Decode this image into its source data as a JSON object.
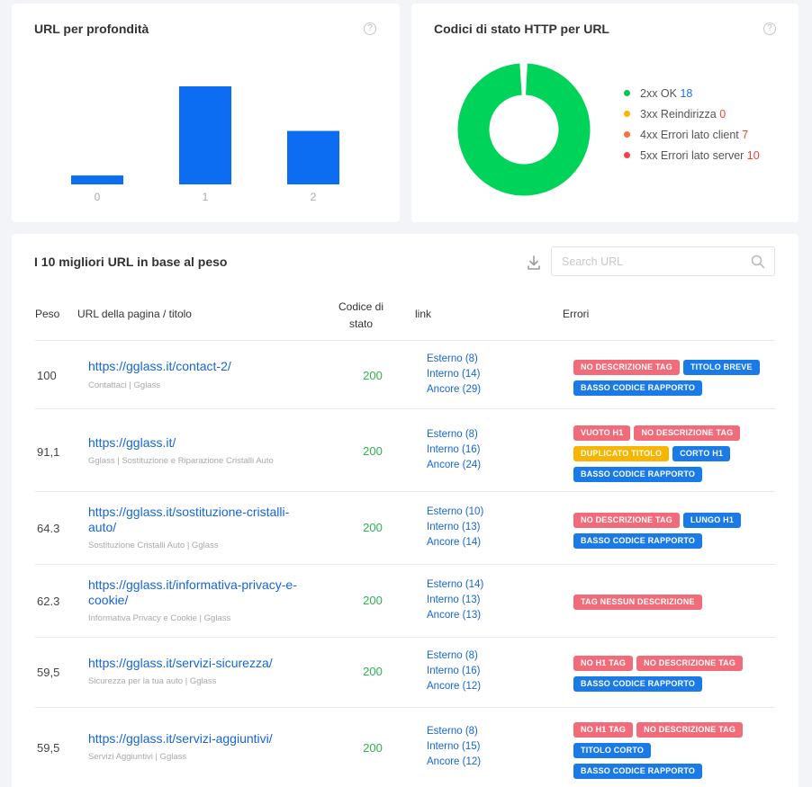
{
  "depth_card": {
    "title": "URL per profondità",
    "help_glyph": "?"
  },
  "chart_data": {
    "type": "bar",
    "categories": [
      "0",
      "1",
      "2"
    ],
    "values": [
      1,
      11,
      6
    ],
    "color": "#0c6cf2",
    "ylim": [
      0,
      11
    ],
    "grid": false
  },
  "http_card": {
    "title": "Codici di stato HTTP per URL",
    "help_glyph": "?",
    "legend": [
      {
        "label": "2xx OK",
        "count": "18",
        "dot_color": "#00c853",
        "count_color": "#1e6fe0"
      },
      {
        "label": "3xx Reindirizza",
        "count": "0",
        "dot_color": "#ffb300",
        "count_color": "#f44336"
      },
      {
        "label": "4xx Errori lato client",
        "count": "7",
        "dot_color": "#ff6d3a",
        "count_color": "#f44336"
      },
      {
        "label": "5xx Errori lato server",
        "count": "10",
        "dot_color": "#f44348",
        "count_color": "#f44336"
      }
    ],
    "donut_color": "#00d35a"
  },
  "table_card": {
    "title": "I 10 migliori URL in base al peso",
    "download_icon": "download-icon",
    "search_placeholder": "Search URL",
    "search_icon": "search-icon",
    "headers": {
      "peso": "Peso",
      "url": "URL della pagina / titolo",
      "status_line1": "Codice di",
      "status_line2": "stato",
      "link": "link",
      "errors": "Errori"
    },
    "rows": [
      {
        "weight": "100",
        "url": "https://gglass.it/contact-2/",
        "title": "Contattaci | Gglass",
        "status": "200",
        "links": [
          "Esterno (8)",
          "Interno (14)",
          "Ancore (29)"
        ],
        "errors": [
          {
            "label": "NO DESCRIZIONE TAG",
            "color": "red"
          },
          {
            "label": "TITOLO BREVE",
            "color": "blue"
          },
          {
            "label": "BASSO CODICE RAPPORTO",
            "color": "blue"
          }
        ]
      },
      {
        "weight": "91,1",
        "url": "https://gglass.it/",
        "title": "Gglass | Sostituzione e Riparazione Cristalli Auto",
        "status": "200",
        "links": [
          "Esterno (8)",
          "Interno (16)",
          "Ancore (24)"
        ],
        "errors": [
          {
            "label": "VUOTO H1",
            "color": "red"
          },
          {
            "label": "NO DESCRIZIONE TAG",
            "color": "red"
          },
          {
            "label": "DUPLICATO TITOLO",
            "color": "yellow"
          },
          {
            "label": "CORTO H1",
            "color": "blue"
          },
          {
            "label": "BASSO CODICE RAPPORTO",
            "color": "blue"
          }
        ]
      },
      {
        "weight": "64.3",
        "url": "https://gglass.it/sostituzione-cristalli-auto/",
        "title": "Sostituzione Cristalli Auto | Gglass",
        "status": "200",
        "links": [
          "Esterno (10)",
          "Interno (13)",
          "Ancore (14)"
        ],
        "errors": [
          {
            "label": "NO DESCRIZIONE TAG",
            "color": "red"
          },
          {
            "label": "LUNGO H1",
            "color": "blue"
          },
          {
            "label": "BASSO CODICE RAPPORTO",
            "color": "blue"
          }
        ]
      },
      {
        "weight": "62.3",
        "url": "https://gglass.it/informativa-privacy-e-cookie/",
        "title": "Informativa Privacy e Cookie | Gglass",
        "status": "200",
        "links": [
          "Esterno (14)",
          "Interno (13)",
          "Ancore (13)"
        ],
        "errors": [
          {
            "label": "TAG NESSUN DESCRIZIONE",
            "color": "red"
          }
        ]
      },
      {
        "weight": "59,5",
        "url": "https://gglass.it/servizi-sicurezza/",
        "title": "Sicurezza per la tua auto | Gglass",
        "status": "200",
        "links": [
          "Esterno (8)",
          "Interno (16)",
          "Ancore (12)"
        ],
        "errors": [
          {
            "label": "NO H1 TAG",
            "color": "red"
          },
          {
            "label": "NO DESCRIZIONE TAG",
            "color": "red"
          },
          {
            "label": "BASSO CODICE RAPPORTO",
            "color": "blue"
          }
        ]
      },
      {
        "weight": "59,5",
        "url": "https://gglass.it/servizi-aggiuntivi/",
        "title": "Servizi Aggiuntivi | Gglass",
        "status": "200",
        "links": [
          "Esterno (8)",
          "Interno (15)",
          "Ancore (12)"
        ],
        "errors": [
          {
            "label": "NO H1 TAG",
            "color": "red"
          },
          {
            "label": "NO DESCRIZIONE TAG",
            "color": "red"
          },
          {
            "label": "TITOLO CORTO",
            "color": "blue"
          },
          {
            "label": "BASSO CODICE RAPPORTO",
            "color": "blue"
          }
        ]
      }
    ]
  }
}
